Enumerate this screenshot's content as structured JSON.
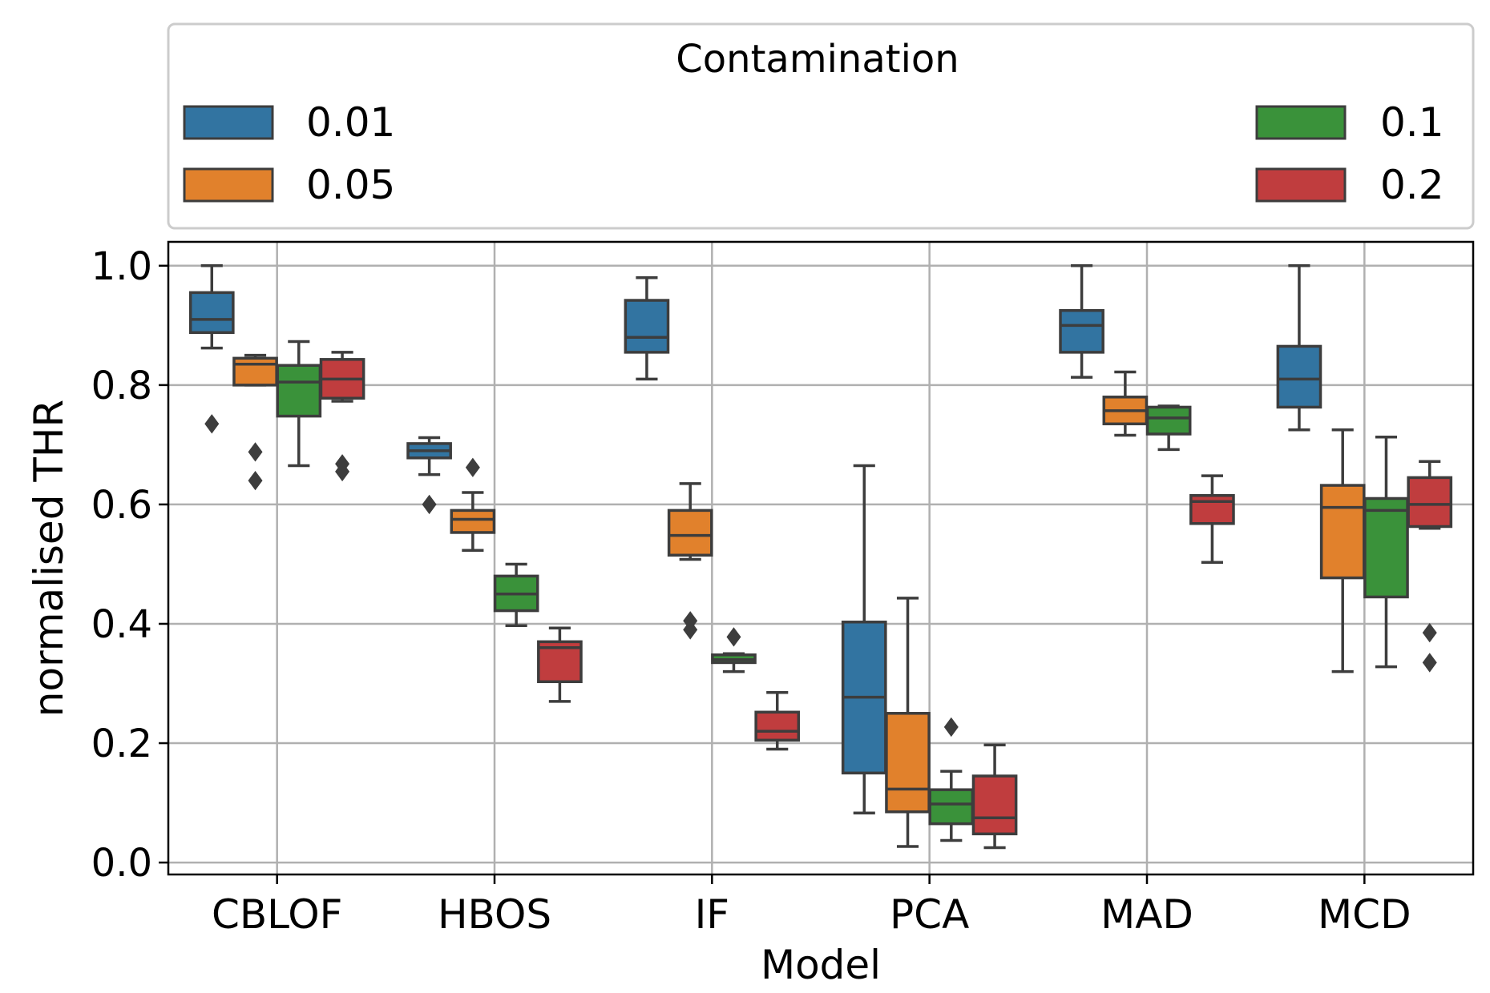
{
  "chart_data": {
    "type": "box",
    "title": "",
    "xlabel": "Model",
    "ylabel": "normalised THR",
    "ylim": [
      -0.02,
      1.04
    ],
    "yticks": [
      0.0,
      0.2,
      0.4,
      0.6,
      0.8,
      1.0
    ],
    "ytick_labels": [
      "0.0",
      "0.2",
      "0.4",
      "0.6",
      "0.8",
      "1.0"
    ],
    "grid": true,
    "categories": [
      "CBLOF",
      "HBOS",
      "IF",
      "PCA",
      "MAD",
      "MCD"
    ],
    "legend": {
      "title": "Contamination",
      "placement": "above-plot",
      "entries": [
        "0.01",
        "0.05",
        "0.1",
        "0.2"
      ]
    },
    "series": [
      {
        "name": "0.01",
        "color": "#3274a1",
        "boxes": [
          {
            "whisker_low": 0.862,
            "q1": 0.888,
            "median": 0.91,
            "q3": 0.955,
            "whisker_high": 1.0,
            "outliers": [
              0.735
            ]
          },
          {
            "whisker_low": 0.65,
            "q1": 0.678,
            "median": 0.69,
            "q3": 0.702,
            "whisker_high": 0.712,
            "outliers": [
              0.6
            ]
          },
          {
            "whisker_low": 0.81,
            "q1": 0.855,
            "median": 0.88,
            "q3": 0.942,
            "whisker_high": 0.98,
            "outliers": []
          },
          {
            "whisker_low": 0.083,
            "q1": 0.15,
            "median": 0.277,
            "q3": 0.403,
            "whisker_high": 0.665,
            "outliers": []
          },
          {
            "whisker_low": 0.813,
            "q1": 0.855,
            "median": 0.9,
            "q3": 0.925,
            "whisker_high": 1.0,
            "outliers": []
          },
          {
            "whisker_low": 0.725,
            "q1": 0.763,
            "median": 0.81,
            "q3": 0.865,
            "whisker_high": 1.0,
            "outliers": []
          }
        ]
      },
      {
        "name": "0.05",
        "color": "#e1812c",
        "boxes": [
          {
            "whisker_low": 0.8,
            "q1": 0.8,
            "median": 0.835,
            "q3": 0.845,
            "whisker_high": 0.85,
            "outliers": [
              0.688,
              0.64
            ]
          },
          {
            "whisker_low": 0.523,
            "q1": 0.553,
            "median": 0.575,
            "q3": 0.59,
            "whisker_high": 0.62,
            "outliers": [
              0.662
            ]
          },
          {
            "whisker_low": 0.508,
            "q1": 0.515,
            "median": 0.548,
            "q3": 0.59,
            "whisker_high": 0.635,
            "outliers": [
              0.405,
              0.39
            ]
          },
          {
            "whisker_low": 0.027,
            "q1": 0.085,
            "median": 0.123,
            "q3": 0.25,
            "whisker_high": 0.443,
            "outliers": []
          },
          {
            "whisker_low": 0.716,
            "q1": 0.735,
            "median": 0.757,
            "q3": 0.78,
            "whisker_high": 0.822,
            "outliers": []
          },
          {
            "whisker_low": 0.32,
            "q1": 0.477,
            "median": 0.595,
            "q3": 0.632,
            "whisker_high": 0.725,
            "outliers": []
          }
        ]
      },
      {
        "name": "0.1",
        "color": "#3a923a",
        "boxes": [
          {
            "whisker_low": 0.665,
            "q1": 0.748,
            "median": 0.805,
            "q3": 0.833,
            "whisker_high": 0.873,
            "outliers": []
          },
          {
            "whisker_low": 0.397,
            "q1": 0.422,
            "median": 0.45,
            "q3": 0.48,
            "whisker_high": 0.5,
            "outliers": []
          },
          {
            "whisker_low": 0.32,
            "q1": 0.335,
            "median": 0.34,
            "q3": 0.348,
            "whisker_high": 0.35,
            "outliers": [
              0.378
            ]
          },
          {
            "whisker_low": 0.037,
            "q1": 0.065,
            "median": 0.098,
            "q3": 0.122,
            "whisker_high": 0.153,
            "outliers": [
              0.227
            ]
          },
          {
            "whisker_low": 0.692,
            "q1": 0.718,
            "median": 0.745,
            "q3": 0.763,
            "whisker_high": 0.765,
            "outliers": []
          },
          {
            "whisker_low": 0.328,
            "q1": 0.445,
            "median": 0.59,
            "q3": 0.61,
            "whisker_high": 0.713,
            "outliers": []
          }
        ]
      },
      {
        "name": "0.2",
        "color": "#c03d3e",
        "boxes": [
          {
            "whisker_low": 0.773,
            "q1": 0.778,
            "median": 0.81,
            "q3": 0.843,
            "whisker_high": 0.855,
            "outliers": [
              0.668,
              0.655
            ]
          },
          {
            "whisker_low": 0.27,
            "q1": 0.303,
            "median": 0.36,
            "q3": 0.37,
            "whisker_high": 0.393,
            "outliers": []
          },
          {
            "whisker_low": 0.19,
            "q1": 0.205,
            "median": 0.22,
            "q3": 0.252,
            "whisker_high": 0.285,
            "outliers": []
          },
          {
            "whisker_low": 0.025,
            "q1": 0.048,
            "median": 0.075,
            "q3": 0.145,
            "whisker_high": 0.197,
            "outliers": []
          },
          {
            "whisker_low": 0.503,
            "q1": 0.568,
            "median": 0.605,
            "q3": 0.615,
            "whisker_high": 0.648,
            "outliers": []
          },
          {
            "whisker_low": 0.56,
            "q1": 0.563,
            "median": 0.6,
            "q3": 0.645,
            "whisker_high": 0.672,
            "outliers": [
              0.385,
              0.335
            ]
          }
        ]
      }
    ]
  }
}
